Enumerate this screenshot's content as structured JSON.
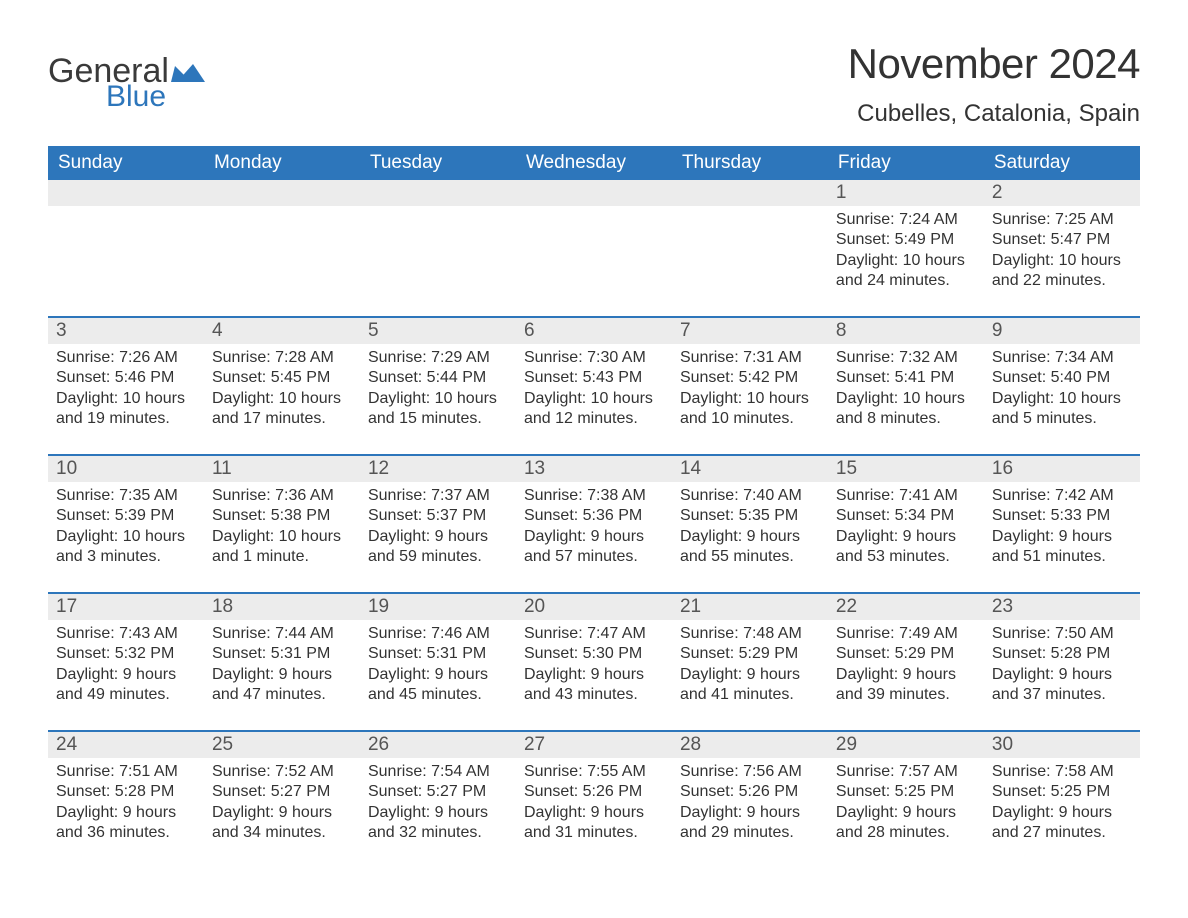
{
  "logo": {
    "word1": "General",
    "word2": "Blue",
    "color_dark": "#3a3a3a",
    "color_blue": "#2d76bb"
  },
  "title": "November 2024",
  "location": "Cubelles, Catalonia, Spain",
  "weekday_labels": [
    "Sunday",
    "Monday",
    "Tuesday",
    "Wednesday",
    "Thursday",
    "Friday",
    "Saturday"
  ],
  "colors": {
    "header_bg": "#2d76bb",
    "header_text": "#ffffff",
    "daynum_bg": "#ececec",
    "row_divider": "#2d76bb",
    "body_text": "#333333",
    "background": "#ffffff"
  },
  "typography": {
    "title_fontsize": 42,
    "location_fontsize": 24,
    "weekday_fontsize": 19,
    "daynum_fontsize": 19,
    "body_fontsize": 16
  },
  "layout": {
    "columns": 7,
    "rows": 5,
    "leading_blanks": 5
  },
  "days": [
    {
      "n": 1,
      "sunrise": "7:24 AM",
      "sunset": "5:49 PM",
      "daylight": "10 hours and 24 minutes."
    },
    {
      "n": 2,
      "sunrise": "7:25 AM",
      "sunset": "5:47 PM",
      "daylight": "10 hours and 22 minutes."
    },
    {
      "n": 3,
      "sunrise": "7:26 AM",
      "sunset": "5:46 PM",
      "daylight": "10 hours and 19 minutes."
    },
    {
      "n": 4,
      "sunrise": "7:28 AM",
      "sunset": "5:45 PM",
      "daylight": "10 hours and 17 minutes."
    },
    {
      "n": 5,
      "sunrise": "7:29 AM",
      "sunset": "5:44 PM",
      "daylight": "10 hours and 15 minutes."
    },
    {
      "n": 6,
      "sunrise": "7:30 AM",
      "sunset": "5:43 PM",
      "daylight": "10 hours and 12 minutes."
    },
    {
      "n": 7,
      "sunrise": "7:31 AM",
      "sunset": "5:42 PM",
      "daylight": "10 hours and 10 minutes."
    },
    {
      "n": 8,
      "sunrise": "7:32 AM",
      "sunset": "5:41 PM",
      "daylight": "10 hours and 8 minutes."
    },
    {
      "n": 9,
      "sunrise": "7:34 AM",
      "sunset": "5:40 PM",
      "daylight": "10 hours and 5 minutes."
    },
    {
      "n": 10,
      "sunrise": "7:35 AM",
      "sunset": "5:39 PM",
      "daylight": "10 hours and 3 minutes."
    },
    {
      "n": 11,
      "sunrise": "7:36 AM",
      "sunset": "5:38 PM",
      "daylight": "10 hours and 1 minute."
    },
    {
      "n": 12,
      "sunrise": "7:37 AM",
      "sunset": "5:37 PM",
      "daylight": "9 hours and 59 minutes."
    },
    {
      "n": 13,
      "sunrise": "7:38 AM",
      "sunset": "5:36 PM",
      "daylight": "9 hours and 57 minutes."
    },
    {
      "n": 14,
      "sunrise": "7:40 AM",
      "sunset": "5:35 PM",
      "daylight": "9 hours and 55 minutes."
    },
    {
      "n": 15,
      "sunrise": "7:41 AM",
      "sunset": "5:34 PM",
      "daylight": "9 hours and 53 minutes."
    },
    {
      "n": 16,
      "sunrise": "7:42 AM",
      "sunset": "5:33 PM",
      "daylight": "9 hours and 51 minutes."
    },
    {
      "n": 17,
      "sunrise": "7:43 AM",
      "sunset": "5:32 PM",
      "daylight": "9 hours and 49 minutes."
    },
    {
      "n": 18,
      "sunrise": "7:44 AM",
      "sunset": "5:31 PM",
      "daylight": "9 hours and 47 minutes."
    },
    {
      "n": 19,
      "sunrise": "7:46 AM",
      "sunset": "5:31 PM",
      "daylight": "9 hours and 45 minutes."
    },
    {
      "n": 20,
      "sunrise": "7:47 AM",
      "sunset": "5:30 PM",
      "daylight": "9 hours and 43 minutes."
    },
    {
      "n": 21,
      "sunrise": "7:48 AM",
      "sunset": "5:29 PM",
      "daylight": "9 hours and 41 minutes."
    },
    {
      "n": 22,
      "sunrise": "7:49 AM",
      "sunset": "5:29 PM",
      "daylight": "9 hours and 39 minutes."
    },
    {
      "n": 23,
      "sunrise": "7:50 AM",
      "sunset": "5:28 PM",
      "daylight": "9 hours and 37 minutes."
    },
    {
      "n": 24,
      "sunrise": "7:51 AM",
      "sunset": "5:28 PM",
      "daylight": "9 hours and 36 minutes."
    },
    {
      "n": 25,
      "sunrise": "7:52 AM",
      "sunset": "5:27 PM",
      "daylight": "9 hours and 34 minutes."
    },
    {
      "n": 26,
      "sunrise": "7:54 AM",
      "sunset": "5:27 PM",
      "daylight": "9 hours and 32 minutes."
    },
    {
      "n": 27,
      "sunrise": "7:55 AM",
      "sunset": "5:26 PM",
      "daylight": "9 hours and 31 minutes."
    },
    {
      "n": 28,
      "sunrise": "7:56 AM",
      "sunset": "5:26 PM",
      "daylight": "9 hours and 29 minutes."
    },
    {
      "n": 29,
      "sunrise": "7:57 AM",
      "sunset": "5:25 PM",
      "daylight": "9 hours and 28 minutes."
    },
    {
      "n": 30,
      "sunrise": "7:58 AM",
      "sunset": "5:25 PM",
      "daylight": "9 hours and 27 minutes."
    }
  ],
  "labels": {
    "sunrise": "Sunrise:",
    "sunset": "Sunset:",
    "daylight": "Daylight:"
  }
}
